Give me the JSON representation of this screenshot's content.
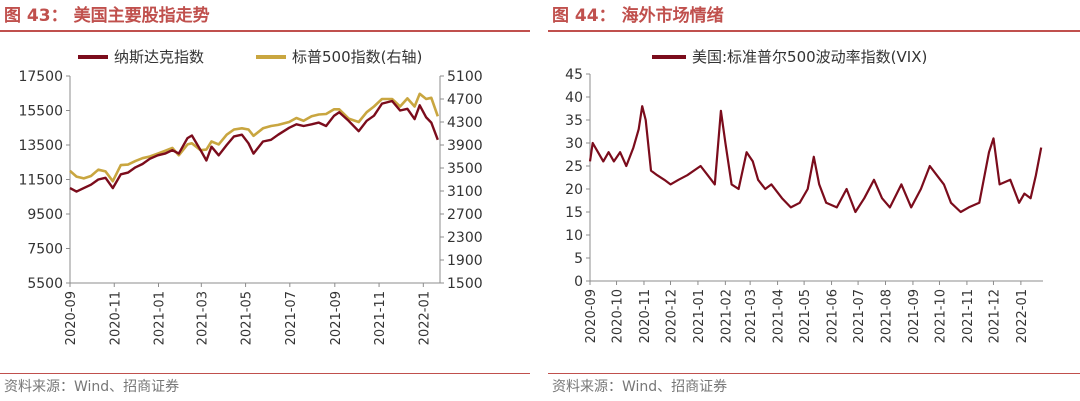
{
  "figure43": {
    "title_num": "图 43",
    "title_text": "美国主要股指走势",
    "source": "资料来源：Wind、招商证券"
  },
  "figure44": {
    "title_num": "图 44",
    "title_text": "海外市场情绪",
    "source": "资料来源：Wind、招商证券"
  },
  "chart_data": [
    {
      "type": "line",
      "title": "",
      "x_ticks": [
        "2020-09",
        "2020-11",
        "2021-01",
        "2021-03",
        "2021-05",
        "2021-07",
        "2021-09",
        "2021-11",
        "2022-01"
      ],
      "y_ticks_left": [
        5500,
        7500,
        9500,
        11500,
        13500,
        15500,
        17500
      ],
      "y_ticks_right": [
        1500,
        1900,
        2300,
        2700,
        3100,
        3500,
        3900,
        4300,
        4700,
        5100
      ],
      "ylim_left": [
        5500,
        17500
      ],
      "ylim_right": [
        1500,
        5100
      ],
      "legend_position": "top",
      "series": [
        {
          "name": "纳斯达克指数",
          "axis": "left",
          "color": "#7b0c1c",
          "points": [
            [
              "2020-09-01",
              11000
            ],
            [
              "2020-09-10",
              10800
            ],
            [
              "2020-09-20",
              11000
            ],
            [
              "2020-09-30",
              11200
            ],
            [
              "2020-10-10",
              11500
            ],
            [
              "2020-10-20",
              11600
            ],
            [
              "2020-10-30",
              11000
            ],
            [
              "2020-11-10",
              11800
            ],
            [
              "2020-11-20",
              11900
            ],
            [
              "2020-11-30",
              12200
            ],
            [
              "2020-12-10",
              12400
            ],
            [
              "2020-12-20",
              12700
            ],
            [
              "2020-12-31",
              12900
            ],
            [
              "2021-01-10",
              13000
            ],
            [
              "2021-01-20",
              13200
            ],
            [
              "2021-01-29",
              13000
            ],
            [
              "2021-02-10",
              13900
            ],
            [
              "2021-02-16",
              14050
            ],
            [
              "2021-02-28",
              13200
            ],
            [
              "2021-03-08",
              12600
            ],
            [
              "2021-03-15",
              13400
            ],
            [
              "2021-03-25",
              12900
            ],
            [
              "2021-04-05",
              13500
            ],
            [
              "2021-04-15",
              14000
            ],
            [
              "2021-04-26",
              14100
            ],
            [
              "2021-05-05",
              13600
            ],
            [
              "2021-05-12",
              13000
            ],
            [
              "2021-05-25",
              13700
            ],
            [
              "2021-06-05",
              13800
            ],
            [
              "2021-06-15",
              14100
            ],
            [
              "2021-06-30",
              14500
            ],
            [
              "2021-07-10",
              14700
            ],
            [
              "2021-07-20",
              14600
            ],
            [
              "2021-07-31",
              14700
            ],
            [
              "2021-08-10",
              14800
            ],
            [
              "2021-08-20",
              14600
            ],
            [
              "2021-08-31",
              15200
            ],
            [
              "2021-09-07",
              15400
            ],
            [
              "2021-09-20",
              14900
            ],
            [
              "2021-10-04",
              14300
            ],
            [
              "2021-10-15",
              14900
            ],
            [
              "2021-10-25",
              15200
            ],
            [
              "2021-11-05",
              15900
            ],
            [
              "2021-11-19",
              16050
            ],
            [
              "2021-11-30",
              15500
            ],
            [
              "2021-12-10",
              15600
            ],
            [
              "2021-12-20",
              15000
            ],
            [
              "2021-12-27",
              15800
            ],
            [
              "2022-01-05",
              15100
            ],
            [
              "2022-01-12",
              14800
            ],
            [
              "2022-01-21",
              13800
            ]
          ]
        },
        {
          "name": "标普500指数(右轴)",
          "axis": "right",
          "color": "#c9a640",
          "points": [
            [
              "2020-09-01",
              3450
            ],
            [
              "2020-09-10",
              3350
            ],
            [
              "2020-09-20",
              3320
            ],
            [
              "2020-09-30",
              3360
            ],
            [
              "2020-10-10",
              3470
            ],
            [
              "2020-10-20",
              3440
            ],
            [
              "2020-10-30",
              3270
            ],
            [
              "2020-11-10",
              3550
            ],
            [
              "2020-11-20",
              3560
            ],
            [
              "2020-11-30",
              3620
            ],
            [
              "2020-12-10",
              3670
            ],
            [
              "2020-12-20",
              3700
            ],
            [
              "2020-12-31",
              3750
            ],
            [
              "2021-01-10",
              3800
            ],
            [
              "2021-01-20",
              3850
            ],
            [
              "2021-01-29",
              3720
            ],
            [
              "2021-02-10",
              3910
            ],
            [
              "2021-02-16",
              3930
            ],
            [
              "2021-02-28",
              3810
            ],
            [
              "2021-03-08",
              3820
            ],
            [
              "2021-03-15",
              3960
            ],
            [
              "2021-03-25",
              3910
            ],
            [
              "2021-04-05",
              4080
            ],
            [
              "2021-04-15",
              4170
            ],
            [
              "2021-04-26",
              4190
            ],
            [
              "2021-05-05",
              4170
            ],
            [
              "2021-05-12",
              4060
            ],
            [
              "2021-05-25",
              4190
            ],
            [
              "2021-06-05",
              4230
            ],
            [
              "2021-06-15",
              4250
            ],
            [
              "2021-06-30",
              4300
            ],
            [
              "2021-07-10",
              4370
            ],
            [
              "2021-07-20",
              4320
            ],
            [
              "2021-07-31",
              4400
            ],
            [
              "2021-08-10",
              4430
            ],
            [
              "2021-08-20",
              4440
            ],
            [
              "2021-08-31",
              4520
            ],
            [
              "2021-09-07",
              4520
            ],
            [
              "2021-09-20",
              4360
            ],
            [
              "2021-10-04",
              4300
            ],
            [
              "2021-10-15",
              4470
            ],
            [
              "2021-10-25",
              4570
            ],
            [
              "2021-11-05",
              4700
            ],
            [
              "2021-11-19",
              4700
            ],
            [
              "2021-11-30",
              4570
            ],
            [
              "2021-12-10",
              4710
            ],
            [
              "2021-12-20",
              4570
            ],
            [
              "2021-12-27",
              4790
            ],
            [
              "2022-01-05",
              4700
            ],
            [
              "2022-01-12",
              4720
            ],
            [
              "2022-01-21",
              4400
            ]
          ]
        }
      ]
    },
    {
      "type": "line",
      "title": "",
      "x_ticks": [
        "2020-09",
        "2020-10",
        "2020-11",
        "2020-12",
        "2021-01",
        "2021-02",
        "2021-03",
        "2021-04",
        "2021-05",
        "2021-06",
        "2021-07",
        "2021-08",
        "2021-09",
        "2021-10",
        "2021-11",
        "2021-12",
        "2022-01"
      ],
      "y_ticks": [
        0,
        5,
        10,
        15,
        20,
        25,
        30,
        35,
        40,
        45
      ],
      "ylim": [
        0,
        45
      ],
      "legend_position": "top",
      "series": [
        {
          "name": "美国:标准普尔500波动率指数(VIX)",
          "color": "#7b0c1c",
          "points": [
            [
              "2020-09-01",
              26
            ],
            [
              "2020-09-04",
              30
            ],
            [
              "2020-09-10",
              28
            ],
            [
              "2020-09-16",
              26
            ],
            [
              "2020-09-22",
              28
            ],
            [
              "2020-09-28",
              26
            ],
            [
              "2020-10-05",
              28
            ],
            [
              "2020-10-12",
              25
            ],
            [
              "2020-10-20",
              29
            ],
            [
              "2020-10-26",
              33
            ],
            [
              "2020-10-30",
              38
            ],
            [
              "2020-11-03",
              35
            ],
            [
              "2020-11-09",
              24
            ],
            [
              "2020-11-16",
              23
            ],
            [
              "2020-11-24",
              22
            ],
            [
              "2020-12-01",
              21
            ],
            [
              "2020-12-10",
              22
            ],
            [
              "2020-12-20",
              23
            ],
            [
              "2021-01-04",
              25
            ],
            [
              "2021-01-12",
              23
            ],
            [
              "2021-01-20",
              21
            ],
            [
              "2021-01-27",
              37
            ],
            [
              "2021-02-01",
              30
            ],
            [
              "2021-02-08",
              21
            ],
            [
              "2021-02-16",
              20
            ],
            [
              "2021-02-25",
              28
            ],
            [
              "2021-03-04",
              26
            ],
            [
              "2021-03-10",
              22
            ],
            [
              "2021-03-18",
              20
            ],
            [
              "2021-03-25",
              21
            ],
            [
              "2021-04-06",
              18
            ],
            [
              "2021-04-16",
              16
            ],
            [
              "2021-04-26",
              17
            ],
            [
              "2021-05-05",
              20
            ],
            [
              "2021-05-12",
              27
            ],
            [
              "2021-05-18",
              21
            ],
            [
              "2021-05-26",
              17
            ],
            [
              "2021-06-07",
              16
            ],
            [
              "2021-06-18",
              20
            ],
            [
              "2021-06-28",
              15
            ],
            [
              "2021-07-08",
              18
            ],
            [
              "2021-07-19",
              22
            ],
            [
              "2021-07-28",
              18
            ],
            [
              "2021-08-06",
              16
            ],
            [
              "2021-08-19",
              21
            ],
            [
              "2021-08-30",
              16
            ],
            [
              "2021-09-10",
              20
            ],
            [
              "2021-09-20",
              25
            ],
            [
              "2021-09-28",
              23
            ],
            [
              "2021-10-06",
              21
            ],
            [
              "2021-10-14",
              17
            ],
            [
              "2021-10-25",
              15
            ],
            [
              "2021-11-03",
              16
            ],
            [
              "2021-11-15",
              17
            ],
            [
              "2021-11-26",
              28
            ],
            [
              "2021-12-01",
              31
            ],
            [
              "2021-12-08",
              21
            ],
            [
              "2021-12-20",
              22
            ],
            [
              "2021-12-30",
              17
            ],
            [
              "2022-01-05",
              19
            ],
            [
              "2022-01-12",
              18
            ],
            [
              "2022-01-18",
              23
            ],
            [
              "2022-01-24",
              29
            ]
          ]
        }
      ]
    }
  ]
}
